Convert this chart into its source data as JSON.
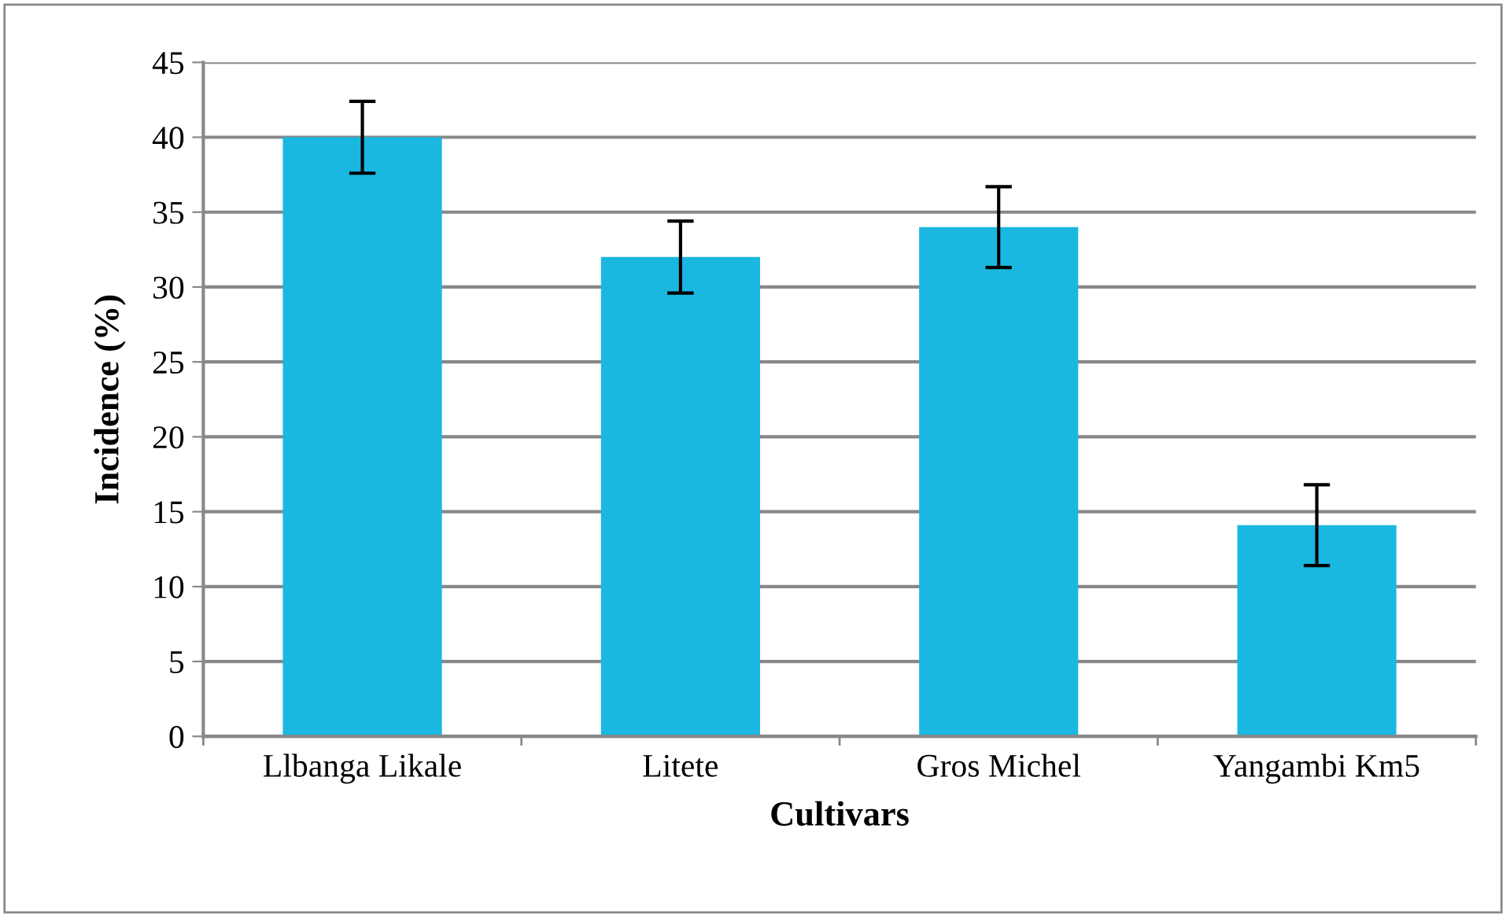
{
  "chart_data": {
    "type": "bar",
    "xlabel": "Cultivars",
    "ylabel": "Incidence (%)",
    "categories": [
      "Llbanga Likale",
      "Litete",
      "Gros Michel",
      "Yangambi Km5"
    ],
    "values": [
      40,
      32,
      34,
      14.1
    ],
    "errors": [
      2.4,
      2.4,
      2.7,
      2.7
    ],
    "color": "#1ab8e0",
    "ylim": [
      0,
      45
    ],
    "yticks": [
      0,
      5,
      10,
      15,
      20,
      25,
      30,
      35,
      40,
      45
    ],
    "grid": "y"
  }
}
